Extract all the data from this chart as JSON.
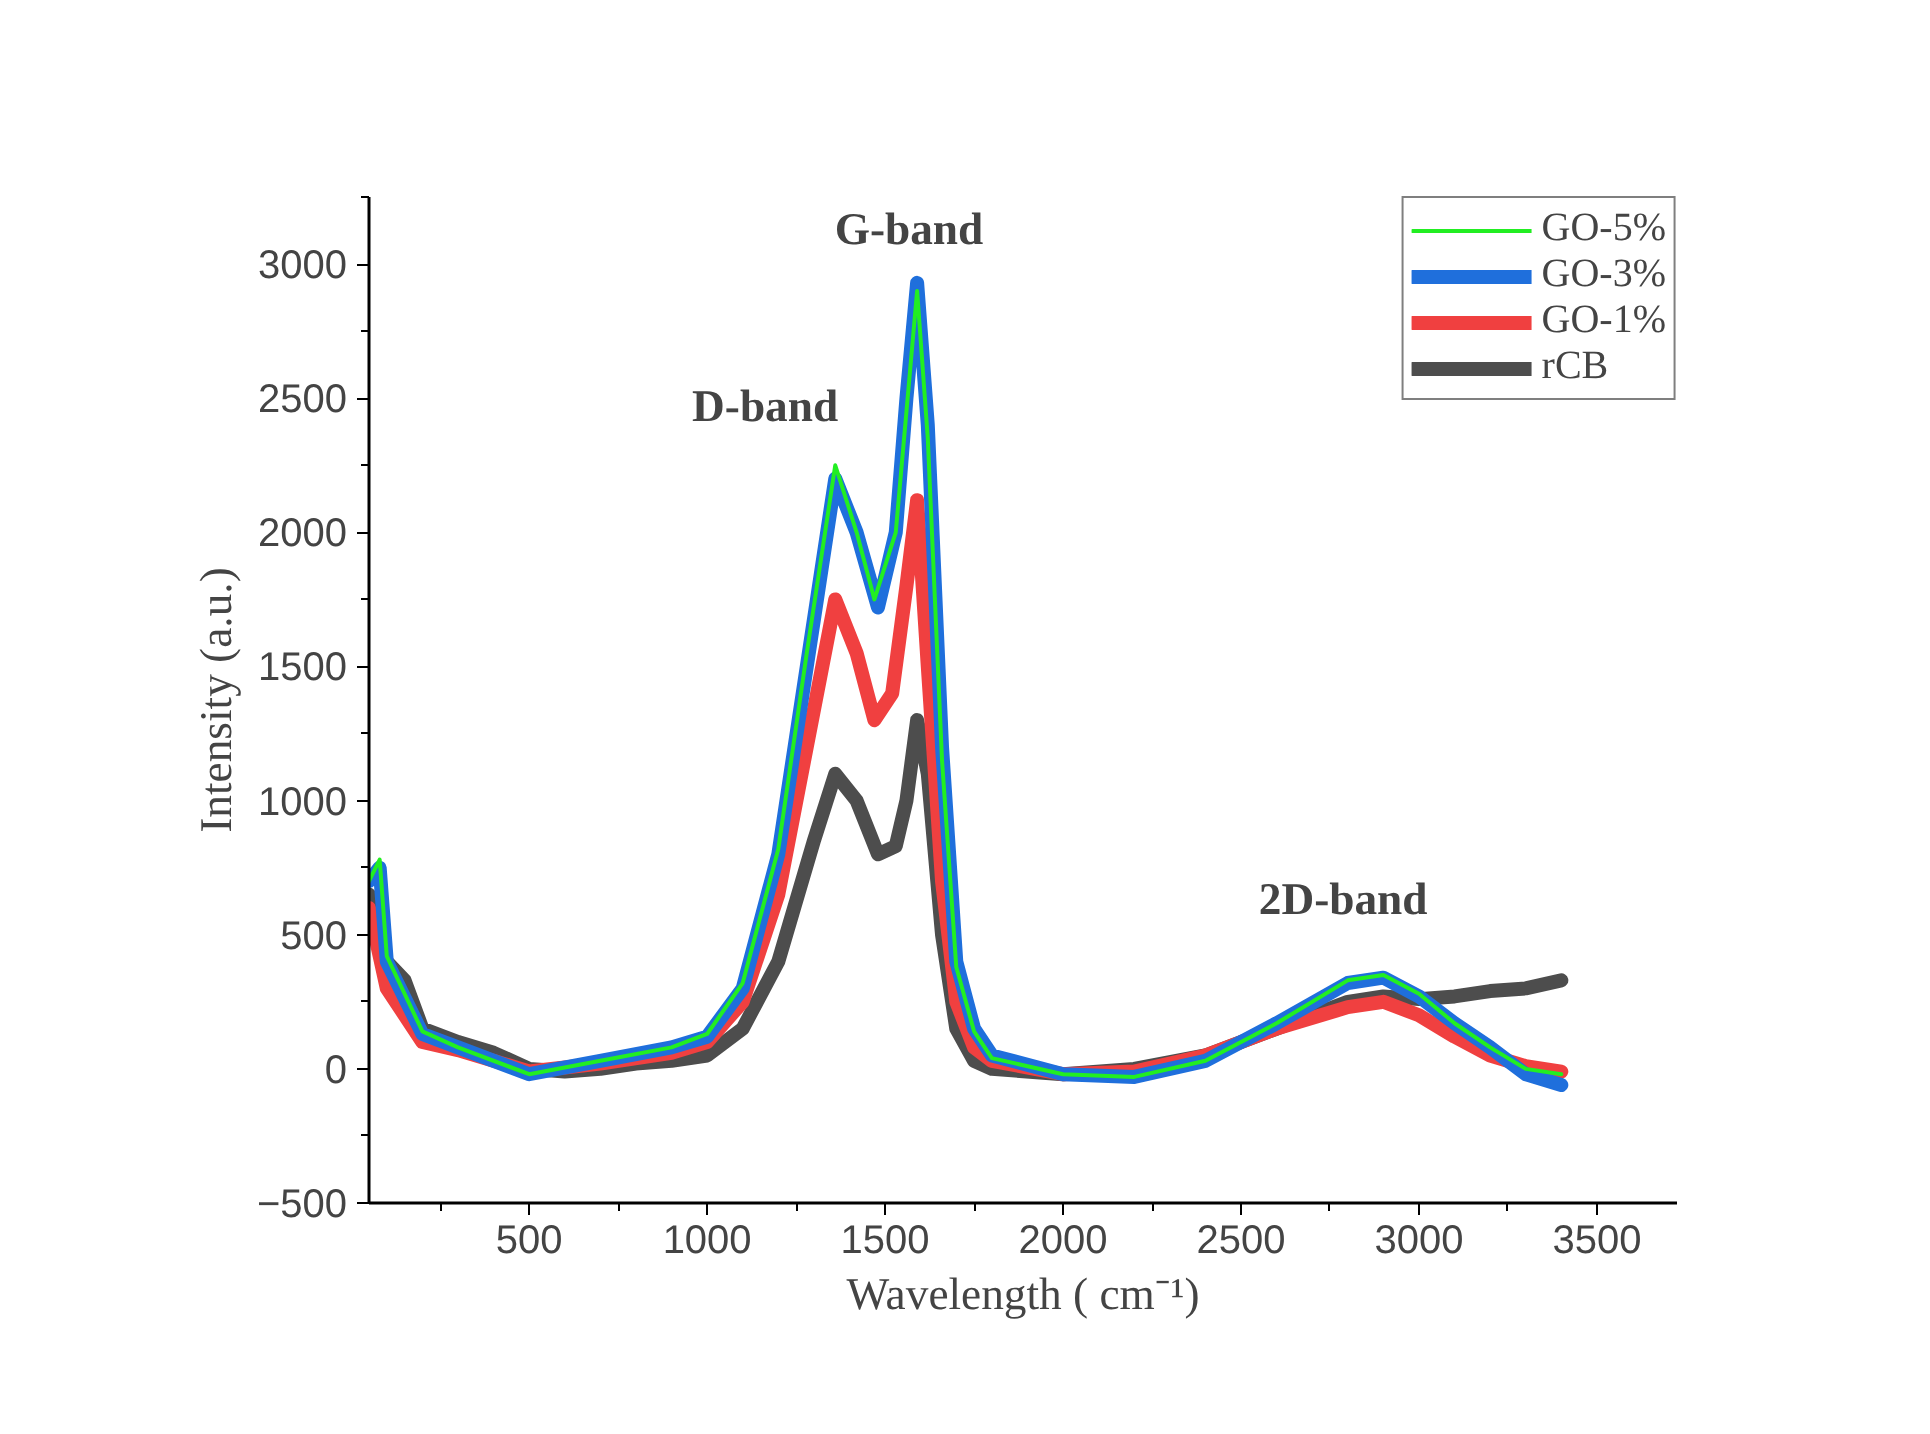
{
  "chart_data": {
    "type": "line",
    "xlabel": "Wavelength ( cm⁻¹)",
    "ylabel": "Intensity (a.u.)",
    "xlim": [
      50,
      3725
    ],
    "ylim": [
      -500,
      3250
    ],
    "xticks": [
      500,
      1000,
      1500,
      2000,
      2500,
      3000,
      3500
    ],
    "yticks": [
      -500,
      0,
      500,
      1000,
      1500,
      2000,
      2500,
      3000
    ],
    "grid": false,
    "legend": "top right",
    "line_style": "solid",
    "marker": "none",
    "annotations": [
      "D-band",
      "G-band",
      "2D-band"
    ],
    "series": [
      {
        "name": "rCB",
        "color": "#4d4d4d",
        "x": [
          50,
          100,
          150,
          200,
          300,
          400,
          500,
          600,
          700,
          800,
          900,
          1000,
          1100,
          1200,
          1300,
          1360,
          1420,
          1480,
          1530,
          1560,
          1590,
          1620,
          1660,
          1700,
          1750,
          1800,
          2000,
          2200,
          2400,
          2600,
          2800,
          2900,
          3000,
          3100,
          3200,
          3300,
          3400
        ],
        "values": [
          650,
          400,
          330,
          150,
          100,
          60,
          0,
          -10,
          0,
          20,
          30,
          50,
          150,
          400,
          850,
          1100,
          1000,
          800,
          830,
          1000,
          1300,
          1100,
          500,
          150,
          30,
          0,
          -20,
          0,
          50,
          150,
          250,
          270,
          260,
          270,
          290,
          300,
          330
        ]
      },
      {
        "name": "GO-1%",
        "color": "#f04040",
        "x": [
          50,
          100,
          200,
          300,
          500,
          700,
          900,
          1000,
          1100,
          1200,
          1280,
          1360,
          1420,
          1470,
          1520,
          1560,
          1590,
          1620,
          1660,
          1700,
          1750,
          1800,
          2000,
          2200,
          2400,
          2600,
          2800,
          2900,
          3000,
          3100,
          3200,
          3300,
          3400
        ],
        "values": [
          600,
          300,
          100,
          70,
          -10,
          20,
          60,
          100,
          250,
          650,
          1200,
          1750,
          1550,
          1300,
          1400,
          1800,
          2120,
          1500,
          700,
          250,
          80,
          30,
          -20,
          -10,
          50,
          150,
          230,
          250,
          200,
          120,
          50,
          10,
          -10
        ]
      },
      {
        "name": "GO-3%",
        "color": "#1f6fdc",
        "x": [
          50,
          80,
          100,
          200,
          300,
          500,
          700,
          900,
          1000,
          1100,
          1200,
          1280,
          1360,
          1420,
          1480,
          1530,
          1560,
          1590,
          1620,
          1660,
          1700,
          1750,
          1800,
          2000,
          2200,
          2400,
          2600,
          2800,
          2900,
          3000,
          3100,
          3200,
          3300,
          3400
        ],
        "values": [
          700,
          750,
          400,
          130,
          80,
          -20,
          30,
          80,
          120,
          300,
          800,
          1500,
          2200,
          2000,
          1720,
          2000,
          2500,
          2930,
          2400,
          1200,
          400,
          150,
          50,
          -20,
          -30,
          30,
          170,
          320,
          340,
          270,
          170,
          80,
          -20,
          -60
        ]
      },
      {
        "name": "GO-5%",
        "color": "#22ee22",
        "x": [
          50,
          80,
          100,
          200,
          300,
          500,
          700,
          900,
          1000,
          1100,
          1200,
          1280,
          1360,
          1420,
          1470,
          1530,
          1560,
          1590,
          1620,
          1660,
          1700,
          1750,
          1800,
          2000,
          2200,
          2400,
          2600,
          2800,
          2900,
          3000,
          3100,
          3200,
          3300,
          3400
        ],
        "values": [
          700,
          780,
          420,
          140,
          80,
          -20,
          30,
          80,
          130,
          320,
          820,
          1550,
          2250,
          2000,
          1750,
          2000,
          2450,
          2900,
          2350,
          1150,
          380,
          140,
          40,
          -20,
          -30,
          30,
          170,
          330,
          350,
          280,
          170,
          80,
          0,
          -20
        ]
      }
    ]
  }
}
